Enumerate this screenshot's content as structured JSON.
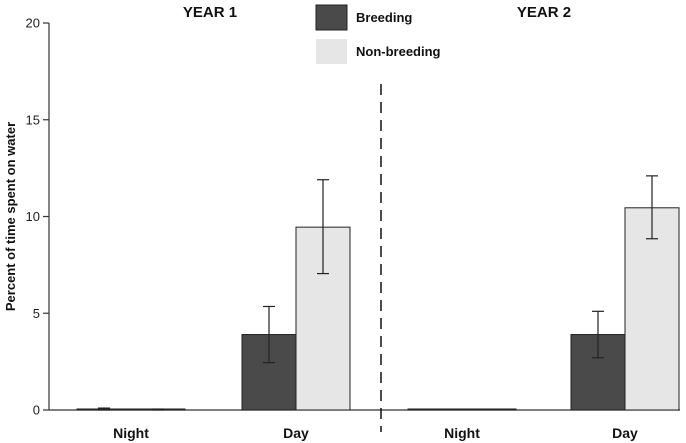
{
  "chart_data": {
    "type": "bar",
    "ylabel": "Percent of time spent on water",
    "ylim": [
      0,
      20
    ],
    "yticks": [
      0,
      5,
      10,
      15,
      20
    ],
    "categories": [
      "Night",
      "Day",
      "Night",
      "Day"
    ],
    "panels": [
      "YEAR 1",
      "YEAR 2"
    ],
    "panel_of_category": [
      0,
      0,
      1,
      1
    ],
    "series": [
      {
        "name": "Breeding",
        "color": "#4a4a4a",
        "values": [
          0.0,
          3.9,
          0.0,
          3.9
        ],
        "error_low": [
          0.0,
          2.45,
          0.0,
          2.7
        ],
        "error_high": [
          0.1,
          5.35,
          0.0,
          5.1
        ]
      },
      {
        "name": "Non-breeding",
        "color": "#e6e6e6",
        "values": [
          0.0,
          9.45,
          0.0,
          10.45
        ],
        "error_low": [
          0.0,
          7.05,
          0.0,
          8.85
        ],
        "error_high": [
          0.05,
          11.9,
          0.0,
          12.1
        ]
      }
    ],
    "legend_position": "top-center",
    "grid": false
  }
}
